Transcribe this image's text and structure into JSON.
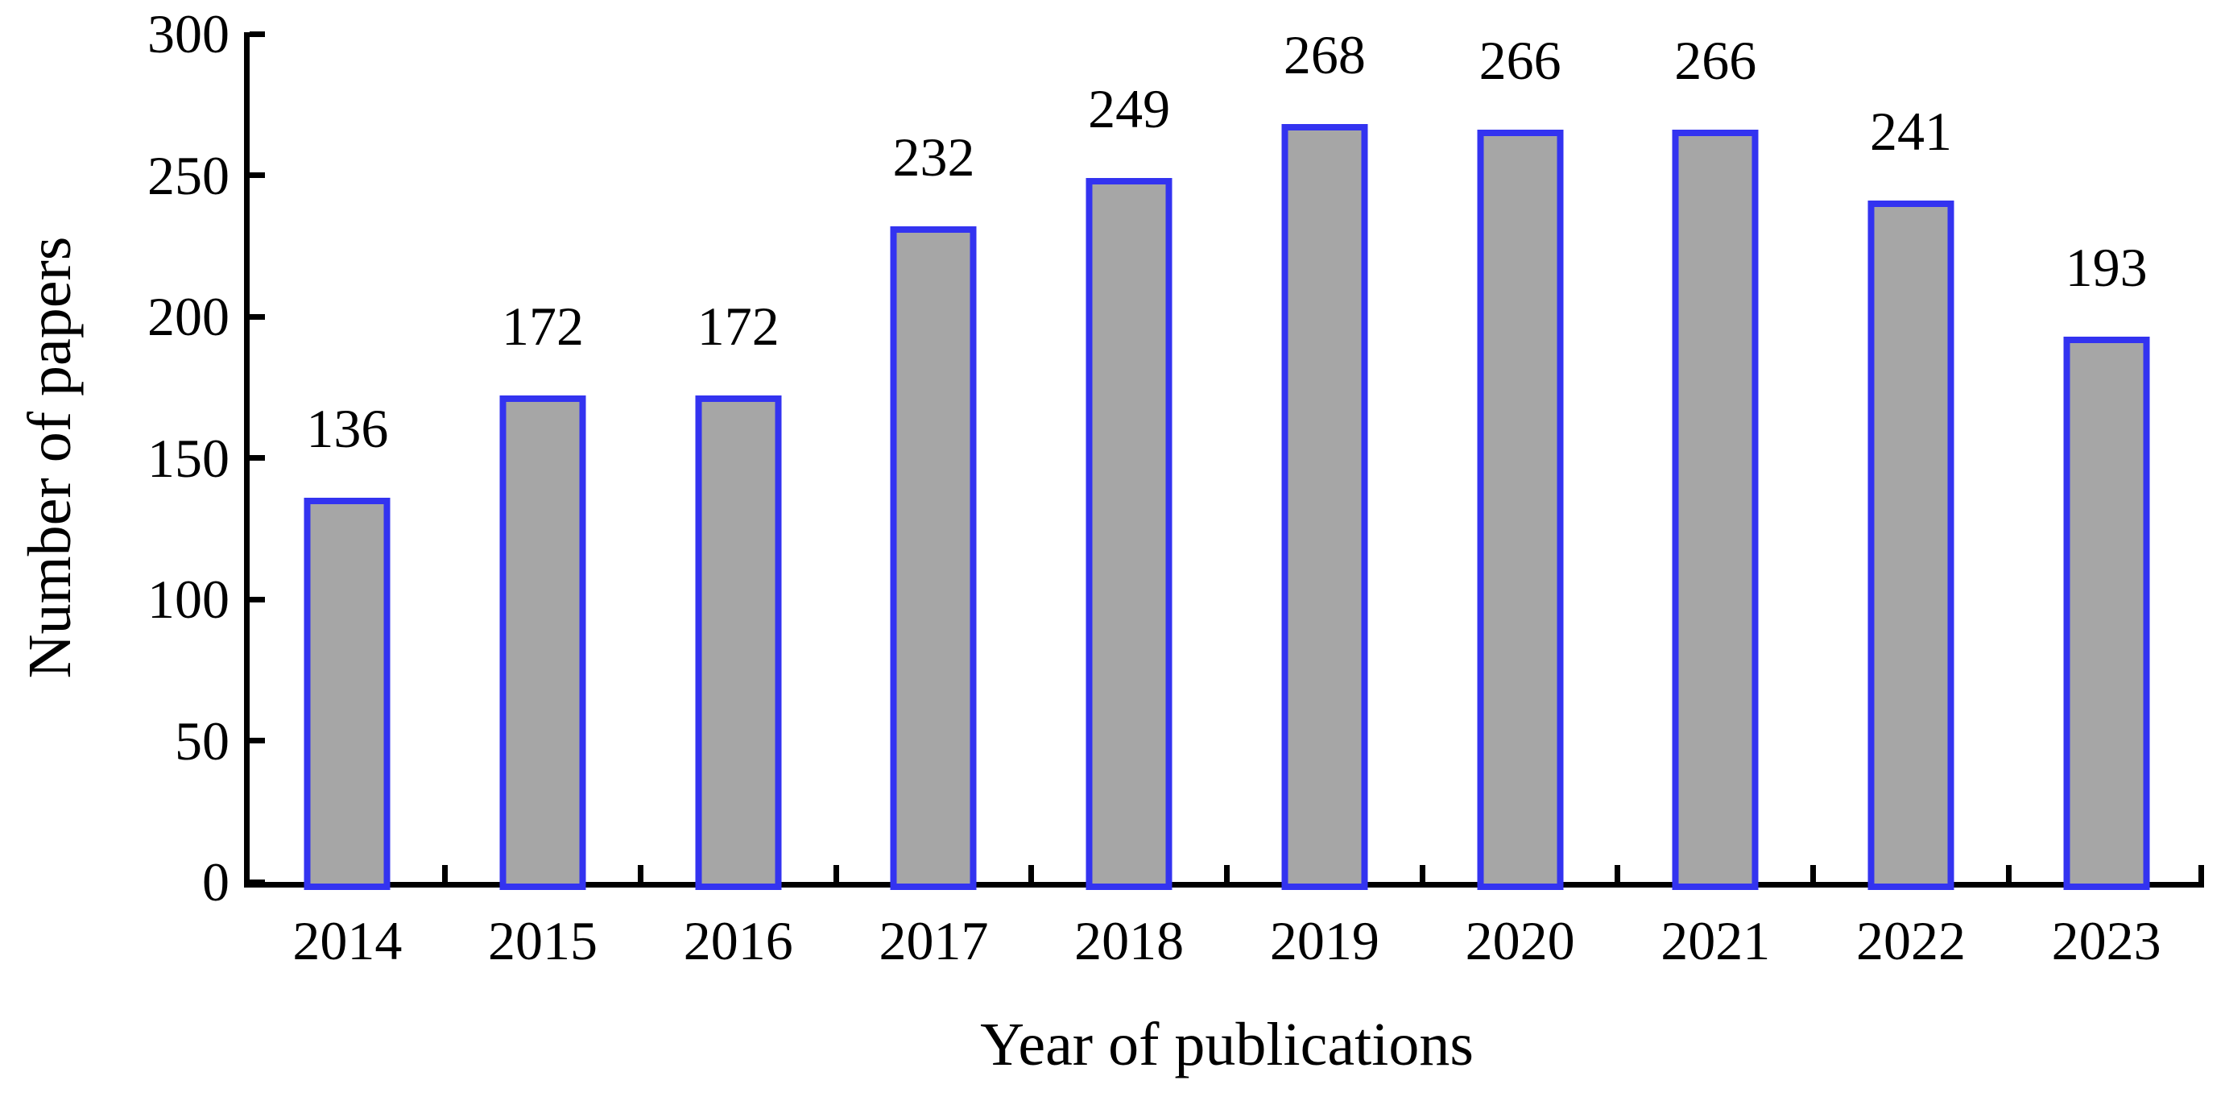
{
  "chart_data": {
    "type": "bar",
    "title": "",
    "xlabel": "Year of publications",
    "ylabel": "Number of papers",
    "categories": [
      "2014",
      "2015",
      "2016",
      "2017",
      "2018",
      "2019",
      "2020",
      "2021",
      "2022",
      "2023"
    ],
    "values": [
      136,
      172,
      172,
      232,
      249,
      268,
      266,
      266,
      241,
      193
    ],
    "data_labels": [
      136,
      172,
      172,
      232,
      249,
      268,
      266,
      266,
      241,
      193
    ],
    "ylim": [
      0,
      300
    ],
    "y_ticks": [
      0,
      50,
      100,
      150,
      200,
      250,
      300
    ],
    "grid": false,
    "legend": "none",
    "bar_fill_color": "#A6A6A6",
    "bar_border_color": "#3333F0",
    "axis_color": "#000000",
    "background_color": "#FFFFFF"
  }
}
